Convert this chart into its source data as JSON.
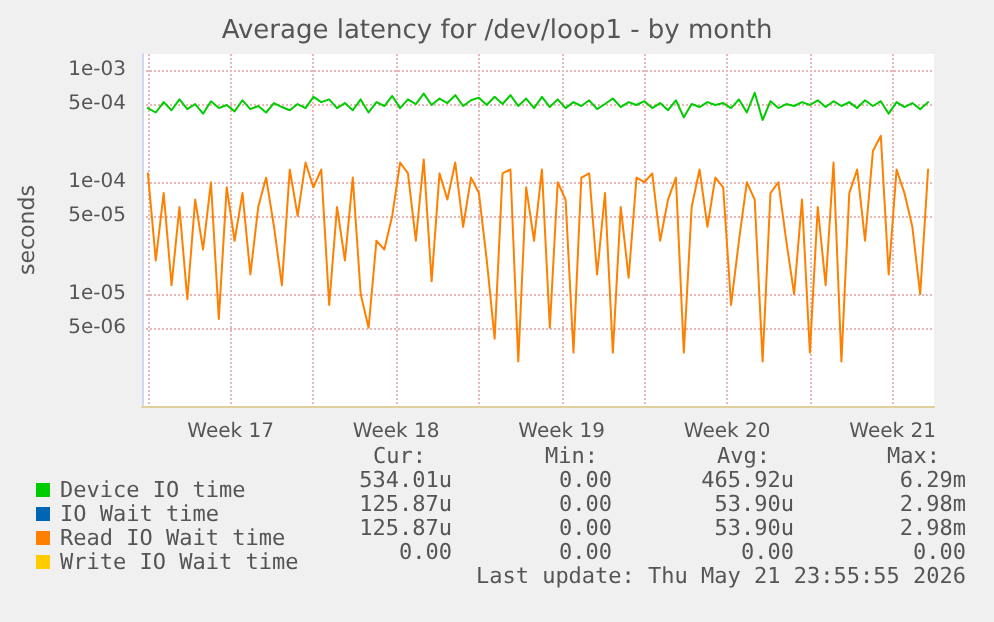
{
  "chart_data": {
    "type": "line",
    "title": "Average latency for /dev/loop1 - by month",
    "ylabel": "seconds",
    "log": "y",
    "grid": true,
    "legend": "bottom",
    "marker": "none",
    "line_style": "solid",
    "xlim": [
      "2026-04-19T18:00",
      "2026-05-23T06:00"
    ],
    "xticks": [
      {
        "value": "2026-04-20",
        "label": null
      },
      {
        "value": "2026-04-23T12:00",
        "label": "Week 17"
      },
      {
        "value": "2026-04-27",
        "label": null
      },
      {
        "value": "2026-04-30T12:00",
        "label": "Week 18"
      },
      {
        "value": "2026-05-04",
        "label": null
      },
      {
        "value": "2026-05-07T12:00",
        "label": "Week 19"
      },
      {
        "value": "2026-05-11",
        "label": null
      },
      {
        "value": "2026-05-14T12:00",
        "label": "Week 20"
      },
      {
        "value": "2026-05-18",
        "label": null
      },
      {
        "value": "2026-05-21T12:00",
        "label": "Week 21"
      }
    ],
    "ylim": [
      1e-06,
      0.0014
    ],
    "yticks": [
      {
        "value": 5e-06,
        "label": "5e-06"
      },
      {
        "value": 1e-05,
        "label": "1e-05"
      },
      {
        "value": 5e-05,
        "label": "5e-05"
      },
      {
        "value": 0.0001,
        "label": "1e-04"
      },
      {
        "value": 0.0005,
        "label": "5e-04"
      },
      {
        "value": 0.001,
        "label": "1e-03"
      }
    ],
    "x": [
      "2026-04-20T00:00",
      "2026-04-20T08:00",
      "2026-04-20T16:00",
      "2026-04-21T00:00",
      "2026-04-21T08:00",
      "2026-04-21T16:00",
      "2026-04-22T00:00",
      "2026-04-22T08:00",
      "2026-04-22T16:00",
      "2026-04-23T00:00",
      "2026-04-23T08:00",
      "2026-04-23T16:00",
      "2026-04-24T00:00",
      "2026-04-24T08:00",
      "2026-04-24T16:00",
      "2026-04-25T00:00",
      "2026-04-25T08:00",
      "2026-04-25T16:00",
      "2026-04-26T00:00",
      "2026-04-26T08:00",
      "2026-04-26T16:00",
      "2026-04-27T00:00",
      "2026-04-27T08:00",
      "2026-04-27T16:00",
      "2026-04-28T00:00",
      "2026-04-28T08:00",
      "2026-04-28T16:00",
      "2026-04-29T00:00",
      "2026-04-29T08:00",
      "2026-04-29T16:00",
      "2026-04-30T00:00",
      "2026-04-30T08:00",
      "2026-04-30T16:00",
      "2026-05-01T00:00",
      "2026-05-01T08:00",
      "2026-05-01T16:00",
      "2026-05-02T00:00",
      "2026-05-02T08:00",
      "2026-05-02T16:00",
      "2026-05-03T00:00",
      "2026-05-03T08:00",
      "2026-05-03T16:00",
      "2026-05-04T00:00",
      "2026-05-04T08:00",
      "2026-05-04T16:00",
      "2026-05-05T00:00",
      "2026-05-05T08:00",
      "2026-05-05T16:00",
      "2026-05-06T00:00",
      "2026-05-06T08:00",
      "2026-05-06T16:00",
      "2026-05-07T00:00",
      "2026-05-07T08:00",
      "2026-05-07T16:00",
      "2026-05-08T00:00",
      "2026-05-08T08:00",
      "2026-05-08T16:00",
      "2026-05-09T00:00",
      "2026-05-09T08:00",
      "2026-05-09T16:00",
      "2026-05-10T00:00",
      "2026-05-10T08:00",
      "2026-05-10T16:00",
      "2026-05-11T00:00",
      "2026-05-11T08:00",
      "2026-05-11T16:00",
      "2026-05-12T00:00",
      "2026-05-12T08:00",
      "2026-05-12T16:00",
      "2026-05-13T00:00",
      "2026-05-13T08:00",
      "2026-05-13T16:00",
      "2026-05-14T00:00",
      "2026-05-14T08:00",
      "2026-05-14T16:00",
      "2026-05-15T00:00",
      "2026-05-15T08:00",
      "2026-05-15T16:00",
      "2026-05-16T00:00",
      "2026-05-16T08:00",
      "2026-05-16T16:00",
      "2026-05-17T00:00",
      "2026-05-17T08:00",
      "2026-05-17T16:00",
      "2026-05-18T00:00",
      "2026-05-18T08:00",
      "2026-05-18T16:00",
      "2026-05-19T00:00",
      "2026-05-19T08:00",
      "2026-05-19T16:00",
      "2026-05-20T00:00",
      "2026-05-20T08:00",
      "2026-05-20T16:00",
      "2026-05-21T00:00",
      "2026-05-21T08:00",
      "2026-05-21T16:00",
      "2026-05-22T00:00",
      "2026-05-22T08:00",
      "2026-05-22T16:00",
      "2026-05-23T00:00"
    ],
    "series": [
      {
        "name": "Device IO time",
        "color": "#00cc00",
        "values": [
          0.00046,
          0.00042,
          0.00052,
          0.00044,
          0.00055,
          0.00045,
          0.0005,
          0.00041,
          0.00053,
          0.00046,
          0.00049,
          0.00043,
          0.00054,
          0.00045,
          0.00048,
          0.00042,
          0.00051,
          0.00047,
          0.00044,
          0.0005,
          0.00046,
          0.00058,
          0.00052,
          0.00055,
          0.00046,
          0.00051,
          0.00044,
          0.00055,
          0.00042,
          0.00052,
          0.00048,
          0.00059,
          0.00046,
          0.00055,
          0.0005,
          0.00062,
          0.00049,
          0.00056,
          0.00051,
          0.0006,
          0.00048,
          0.00054,
          0.00057,
          0.00049,
          0.00058,
          0.0005,
          0.0006,
          0.00048,
          0.00056,
          0.00046,
          0.00058,
          0.00047,
          0.00055,
          0.00046,
          0.00052,
          0.00048,
          0.00054,
          0.00045,
          0.0005,
          0.00056,
          0.00047,
          0.00052,
          0.00049,
          0.00053,
          0.00046,
          0.00051,
          0.00044,
          0.00054,
          0.00038,
          0.0005,
          0.00047,
          0.00052,
          0.00049,
          0.00051,
          0.00046,
          0.00055,
          0.00042,
          0.00063,
          0.00036,
          0.00053,
          0.00046,
          0.0005,
          0.00048,
          0.00052,
          0.00049,
          0.00054,
          0.00047,
          0.00053,
          0.00048,
          0.00052,
          0.00046,
          0.00054,
          0.00048,
          0.00053,
          0.00041,
          0.00052,
          0.00047,
          0.00051,
          0.00045,
          0.00052
        ]
      },
      {
        "name": "IO Wait time",
        "color": "#0066b3",
        "values": [
          null,
          null,
          null,
          null,
          null,
          null,
          null,
          null,
          null,
          null,
          null,
          null,
          null,
          null,
          null,
          null,
          null,
          null,
          null,
          null,
          null,
          null,
          null,
          null,
          null,
          null,
          null,
          null,
          null,
          null,
          null,
          null,
          null,
          null,
          null,
          null,
          null,
          null,
          null,
          null,
          null,
          null,
          null,
          null,
          null,
          null,
          null,
          null,
          null,
          null,
          null,
          null,
          null,
          null,
          null,
          null,
          null,
          null,
          null,
          null,
          null,
          null,
          null,
          null,
          null,
          null,
          null,
          null,
          null,
          null,
          null,
          null,
          null,
          null,
          null,
          null,
          null,
          null,
          null,
          null,
          null,
          null,
          null,
          null,
          null,
          null,
          null,
          null,
          null,
          null,
          null,
          null,
          null,
          null,
          null,
          null,
          null,
          null,
          null,
          null
        ]
      },
      {
        "name": "Read IO Wait time",
        "color": "#ff8000",
        "values": [
          0.00012,
          2e-05,
          8e-05,
          1.2e-05,
          6e-05,
          9e-06,
          7e-05,
          2.5e-05,
          0.0001,
          6e-06,
          9e-05,
          3e-05,
          8e-05,
          1.5e-05,
          6e-05,
          0.00011,
          4e-05,
          1.2e-05,
          0.00013,
          5e-05,
          0.00015,
          9e-05,
          0.00013,
          8e-06,
          6e-05,
          2e-05,
          0.00011,
          1e-05,
          5e-06,
          3e-05,
          2.5e-05,
          5e-05,
          0.00015,
          0.00012,
          3e-05,
          0.00016,
          1.3e-05,
          0.00012,
          7e-05,
          0.00015,
          4e-05,
          0.00011,
          8e-05,
          2e-05,
          4e-06,
          0.00012,
          0.00013,
          2.5e-06,
          9e-05,
          3e-05,
          0.00013,
          5e-06,
          0.0001,
          7e-05,
          3e-06,
          0.00011,
          0.00012,
          1.5e-05,
          8e-05,
          3e-06,
          6e-05,
          1.4e-05,
          0.00011,
          0.0001,
          0.00012,
          3e-05,
          7e-05,
          0.00011,
          3e-06,
          6e-05,
          0.00013,
          4e-05,
          0.00011,
          9e-05,
          8e-06,
          3e-05,
          0.0001,
          7e-05,
          2.5e-06,
          8e-05,
          0.0001,
          3e-05,
          1e-05,
          7e-05,
          3e-06,
          6e-05,
          1.2e-05,
          0.00015,
          2.5e-06,
          8e-05,
          0.00013,
          3e-05,
          0.00019,
          0.00026,
          1.5e-05,
          0.00013,
          8e-05,
          4e-05,
          1e-05,
          0.00013
        ]
      },
      {
        "name": "Write IO Wait time",
        "color": "#ffcc00",
        "values": [
          null,
          null,
          null,
          null,
          null,
          null,
          null,
          null,
          null,
          null,
          null,
          null,
          null,
          null,
          null,
          null,
          null,
          null,
          null,
          null,
          null,
          null,
          null,
          null,
          null,
          null,
          null,
          null,
          null,
          null,
          null,
          null,
          null,
          null,
          null,
          null,
          null,
          null,
          null,
          null,
          null,
          null,
          null,
          null,
          null,
          null,
          null,
          null,
          null,
          null,
          null,
          null,
          null,
          null,
          null,
          null,
          null,
          null,
          null,
          null,
          null,
          null,
          null,
          null,
          null,
          null,
          null,
          null,
          null,
          null,
          null,
          null,
          null,
          null,
          null,
          null,
          null,
          null,
          null,
          null,
          null,
          null,
          null,
          null,
          null,
          null,
          null,
          null,
          null,
          null,
          null,
          null,
          null,
          null,
          null,
          null,
          null,
          null,
          null,
          null
        ]
      }
    ],
    "annotations": [
      "Cur:",
      "Min:",
      "Avg:",
      "Max:",
      "534.01u",
      "0.00",
      "465.92u",
      "6.29m",
      "125.87u",
      "0.00",
      "53.90u",
      "2.98m",
      "125.87u",
      "0.00",
      "53.90u",
      "2.98m",
      "0.00",
      "0.00",
      "0.00",
      "0.00",
      "Last update: Thu May 21 23:55:55 2026"
    ]
  }
}
